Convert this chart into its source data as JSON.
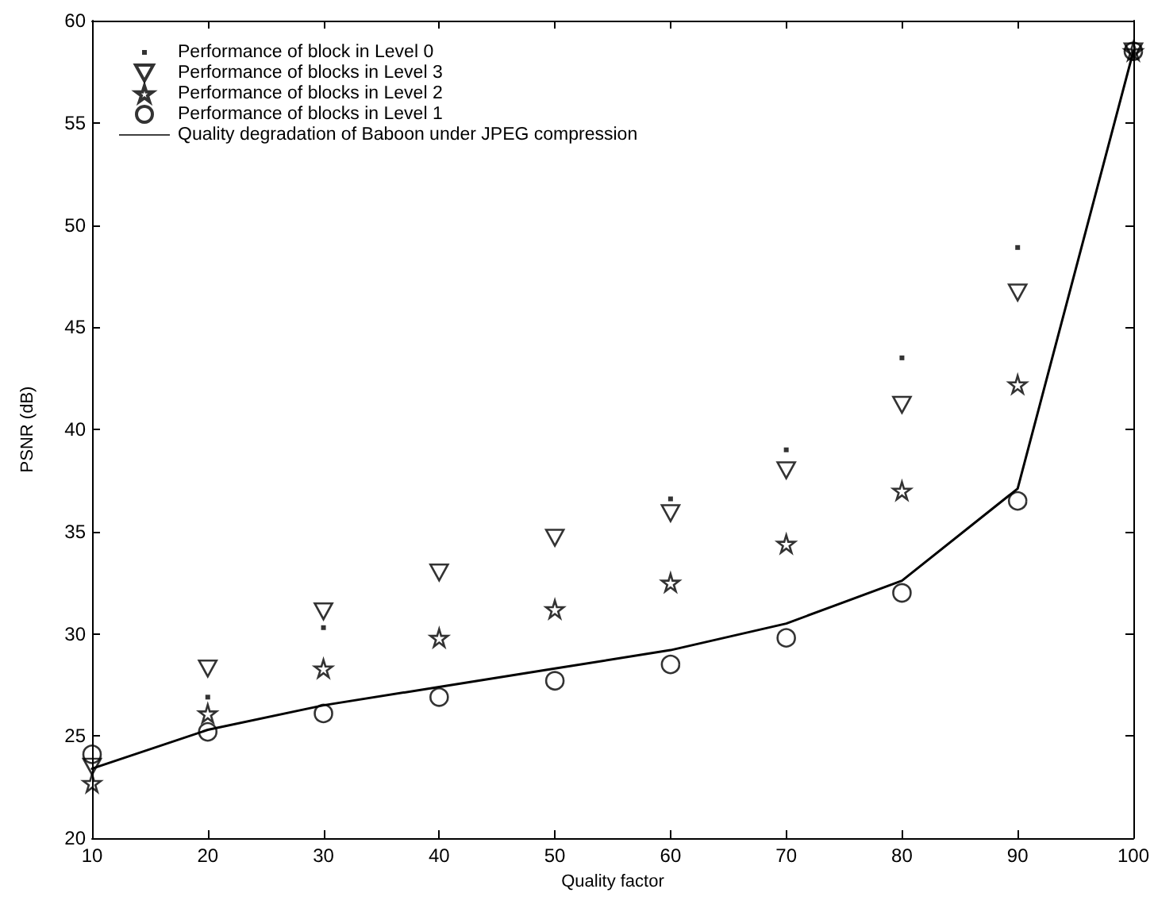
{
  "chart_data": {
    "type": "scatter",
    "xlabel": "Quality factor",
    "ylabel": "PSNR (dB)",
    "x": [
      10,
      20,
      30,
      40,
      50,
      60,
      70,
      80,
      90,
      100
    ],
    "series": [
      {
        "name": "Performance of block in Level 0",
        "color": "#000000",
        "marker": "square",
        "values": [
          null,
          26.9,
          30.3,
          null,
          null,
          36.6,
          39.0,
          43.5,
          48.9,
          58.5
        ]
      },
      {
        "name": "Performance of blocks in Level 3",
        "color": "#000000",
        "marker": "triangle",
        "values": [
          23.5,
          28.3,
          31.1,
          33.0,
          34.7,
          35.9,
          38.0,
          41.2,
          46.7,
          58.5
        ]
      },
      {
        "name": "Performance of blocks in Level 2",
        "color": "#000000",
        "marker": "star",
        "values": [
          22.7,
          26.1,
          28.3,
          29.8,
          31.2,
          32.5,
          34.4,
          37.0,
          42.2,
          58.5
        ]
      },
      {
        "name": "Performance of blocks in Level 1",
        "color": "#000000",
        "marker": "circle",
        "values": [
          24.1,
          25.2,
          26.1,
          26.9,
          27.7,
          28.5,
          29.8,
          32.0,
          36.5,
          58.5
        ]
      },
      {
        "name": "Quality degradation of Baboon under JPEG compression",
        "color": "#000000",
        "type": "line",
        "marker": "none",
        "line_style": "solid",
        "values": [
          23.4,
          25.3,
          26.5,
          27.4,
          28.3,
          29.2,
          30.5,
          32.6,
          37.1,
          58.5
        ]
      }
    ],
    "xlim": [
      10,
      100
    ],
    "xticks": [
      10,
      20,
      30,
      40,
      50,
      60,
      70,
      80,
      90,
      100
    ],
    "ylim": [
      20,
      60
    ],
    "yticks": [
      20,
      25,
      30,
      35,
      40,
      45,
      50,
      55,
      60
    ],
    "grid": false,
    "legend": "top left"
  }
}
